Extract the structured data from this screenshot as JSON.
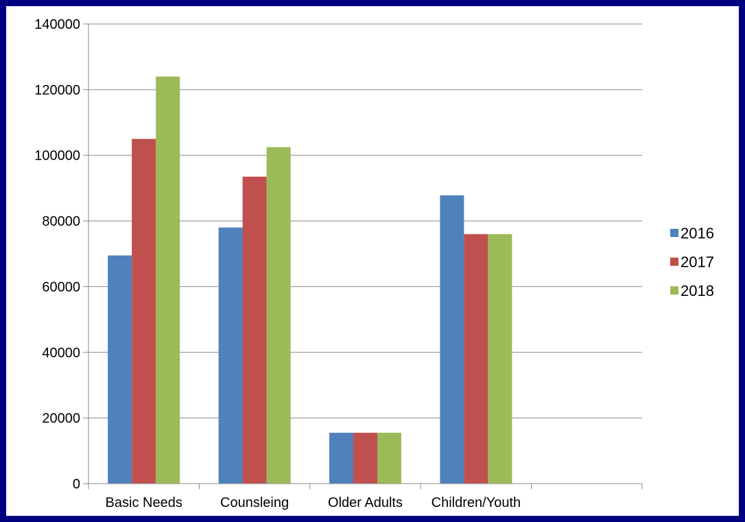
{
  "chart_data": {
    "type": "bar",
    "categories": [
      "Basic Needs",
      "Counsleing",
      "Older Adults",
      "Children/Youth",
      ""
    ],
    "series": [
      {
        "name": "2016",
        "color": "#4F81BD",
        "values": [
          69500,
          78000,
          15500,
          87800,
          null
        ]
      },
      {
        "name": "2017",
        "color": "#C0504D",
        "values": [
          105000,
          93500,
          15500,
          76000,
          null
        ]
      },
      {
        "name": "2018",
        "color": "#9BBB59",
        "values": [
          124000,
          102500,
          15500,
          76000,
          null
        ]
      }
    ],
    "ylim": [
      0,
      140000
    ],
    "yticks": [
      0,
      20000,
      40000,
      60000,
      80000,
      100000,
      120000,
      140000
    ],
    "grid": true,
    "legend_position": "right",
    "frame_color": "#000080"
  }
}
